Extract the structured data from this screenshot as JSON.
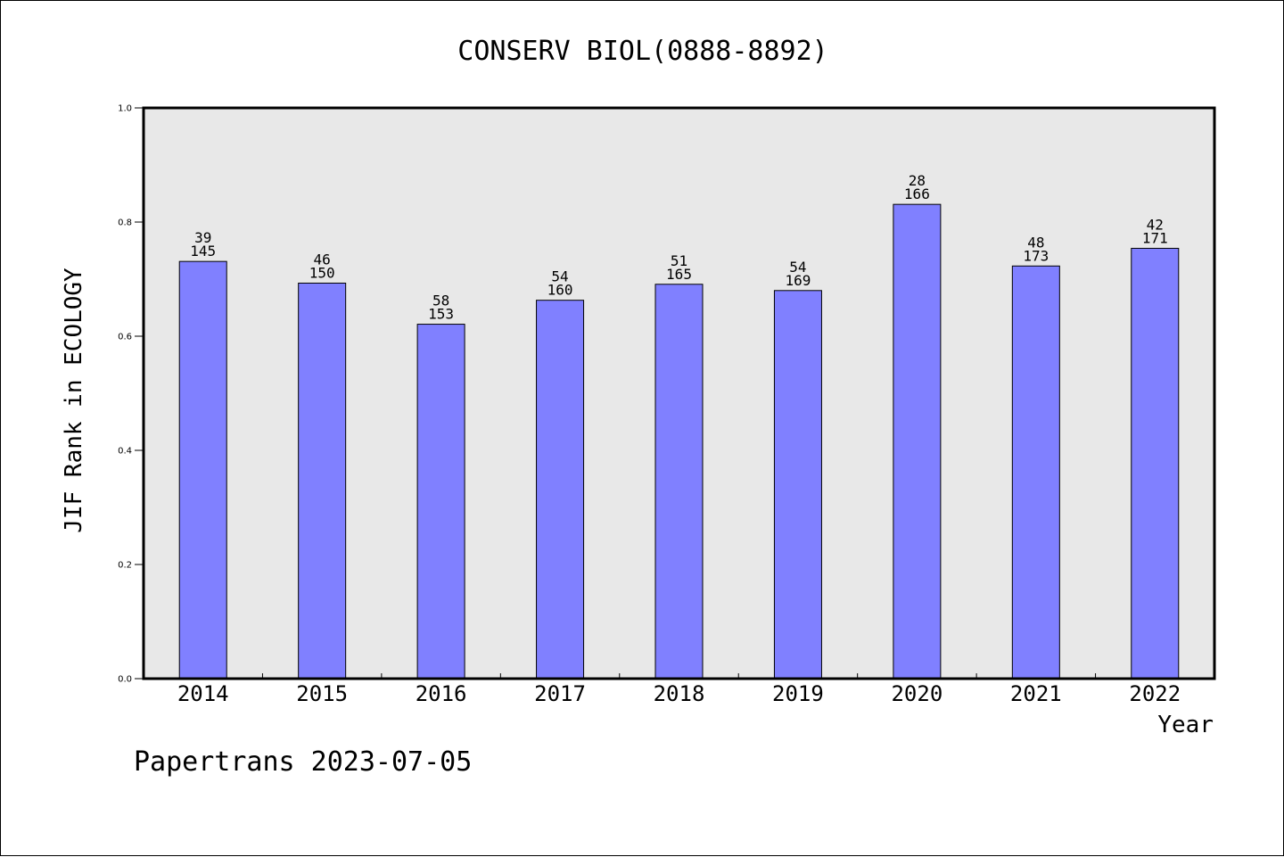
{
  "chart_data": {
    "type": "bar",
    "title": "CONSERV BIOL(0888-8892)",
    "xlabel": "Year",
    "ylabel": "JIF Rank in ECOLOGY",
    "ylim": [
      0,
      1.0
    ],
    "yticks": [
      "0.0",
      "0.2",
      "0.4",
      "0.6",
      "0.8",
      "1.0"
    ],
    "categories": [
      "2014",
      "2015",
      "2016",
      "2017",
      "2018",
      "2019",
      "2020",
      "2021",
      "2022"
    ],
    "values": [
      0.731,
      0.693,
      0.621,
      0.663,
      0.691,
      0.68,
      0.831,
      0.723,
      0.754
    ],
    "rank": [
      "39",
      "46",
      "58",
      "54",
      "51",
      "54",
      "28",
      "48",
      "42"
    ],
    "total": [
      "145",
      "150",
      "153",
      "160",
      "165",
      "169",
      "166",
      "173",
      "171"
    ],
    "grid": false,
    "colors": {
      "bar": "#8080ff",
      "plot_bg": "#e8e8e8",
      "axis": "#000000"
    }
  },
  "footer": {
    "text": "Papertrans 2023-07-05"
  }
}
